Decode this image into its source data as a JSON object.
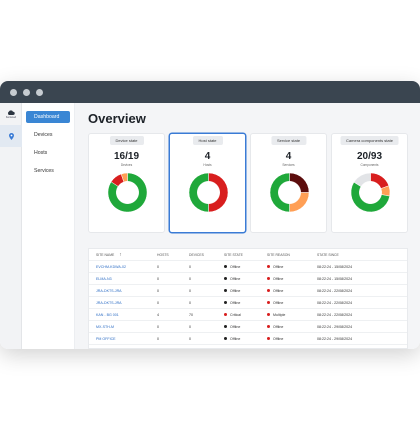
{
  "app": {
    "logo_label": "Kerisned"
  },
  "nav": {
    "items": [
      {
        "label": "Dashboard",
        "active": true
      },
      {
        "label": "Devices",
        "active": false
      },
      {
        "label": "Hosts",
        "active": false
      },
      {
        "label": "Services",
        "active": false
      }
    ]
  },
  "page": {
    "title": "Overview"
  },
  "cards": [
    {
      "header": "Device state",
      "value": "16/19",
      "sub": "Devices",
      "segments": [
        {
          "value": 16,
          "color": "#1fa83a"
        },
        {
          "value": 2,
          "color": "#d81e1e"
        },
        {
          "value": 1,
          "color": "#ff9f55"
        }
      ]
    },
    {
      "header": "Host state",
      "value": "4",
      "sub": "Hosts",
      "segments": [
        {
          "value": 2,
          "color": "#d81e1e"
        },
        {
          "value": 2,
          "color": "#1fa83a"
        }
      ]
    },
    {
      "header": "Service state",
      "value": "4",
      "sub": "Services",
      "segments": [
        {
          "value": 1,
          "color": "#5c0d0d"
        },
        {
          "value": 1,
          "color": "#ff9f55"
        },
        {
          "value": 2,
          "color": "#1fa83a"
        }
      ]
    },
    {
      "header": "Camera components state",
      "value": "20/93",
      "sub": "Components",
      "segments": [
        {
          "value": 18,
          "color": "#d81e1e"
        },
        {
          "value": 8,
          "color": "#ff9f55"
        },
        {
          "value": 52,
          "color": "#1fa83a"
        },
        {
          "value": 15,
          "color": "#e2e4e7"
        }
      ]
    }
  ],
  "table": {
    "columns": [
      "SITE NAME",
      "HOSTS",
      "DEVICES",
      "SITE STATE",
      "SITE REASON",
      "STATE SINCE"
    ],
    "rows": [
      {
        "site": "EVCHM-KDWA-02",
        "hosts": "0",
        "devices": "0",
        "state": "Offline",
        "state_color": "#222222",
        "reason": "Offline",
        "reason_color": "#d81e1e",
        "since": "08:22:24 - 15/08/2024"
      },
      {
        "site": "ELMA-N3",
        "hosts": "0",
        "devices": "0",
        "state": "Offline",
        "state_color": "#222222",
        "reason": "Offline",
        "reason_color": "#d81e1e",
        "since": "08:22:24 - 15/08/2024"
      },
      {
        "site": "JRA-DKTS-JRA",
        "hosts": "0",
        "devices": "0",
        "state": "Offline",
        "state_color": "#222222",
        "reason": "Offline",
        "reason_color": "#d81e1e",
        "since": "08:22:24 - 22/08/2024"
      },
      {
        "site": "JRA-DKTS-JRA",
        "hosts": "0",
        "devices": "0",
        "state": "Offline",
        "state_color": "#222222",
        "reason": "Offline",
        "reason_color": "#d81e1e",
        "since": "08:22:24 - 22/08/2024"
      },
      {
        "site": "KAN - BG 001",
        "hosts": "4",
        "devices": "70",
        "state": "Critical",
        "state_color": "#d81e1e",
        "reason": "Multiple",
        "reason_color": "#d81e1e",
        "since": "08:22:24 - 22/08/2024"
      },
      {
        "site": "MX-STH-M",
        "hosts": "0",
        "devices": "0",
        "state": "Offline",
        "state_color": "#222222",
        "reason": "Offline",
        "reason_color": "#d81e1e",
        "since": "08:22:24 - 29/08/2024"
      },
      {
        "site": "PM OFFICE",
        "hosts": "0",
        "devices": "0",
        "state": "Offline",
        "state_color": "#222222",
        "reason": "Offline",
        "reason_color": "#d81e1e",
        "since": "08:22:24 - 29/08/2024"
      }
    ]
  }
}
